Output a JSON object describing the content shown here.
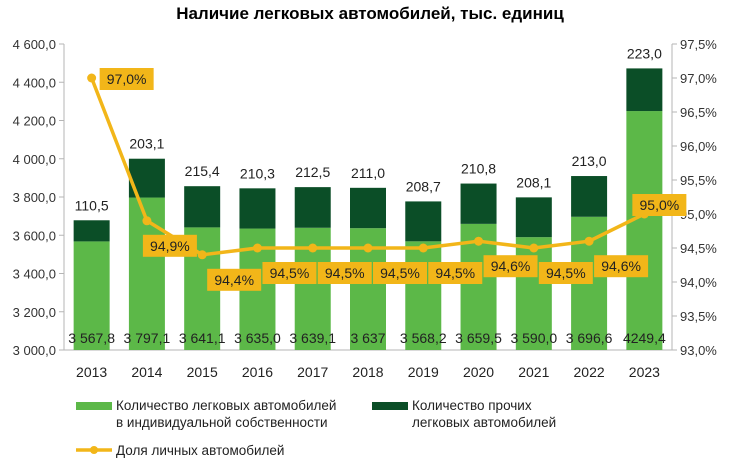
{
  "chart_data": {
    "type": "bar",
    "stacked": true,
    "title": "Наличие легковых автомобилей, тыс. единиц",
    "categories": [
      "2013",
      "2014",
      "2015",
      "2016",
      "2017",
      "2018",
      "2019",
      "2020",
      "2021",
      "2022",
      "2023"
    ],
    "series": [
      {
        "name": "Количество легковых автомобилей в индивидуальной собственности",
        "kind": "bar",
        "color": "#5cb848",
        "values": [
          3567.8,
          3797.1,
          3641.1,
          3635.0,
          3639.1,
          3637.0,
          3568.2,
          3659.5,
          3590.0,
          3696.6,
          4249.4
        ],
        "labels": [
          "3 567,8",
          "3 797,1",
          "3 641,1",
          "3 635,0",
          "3 639,1",
          "3 637",
          "3 568,2",
          "3 659,5",
          "3 590,0",
          "3 696,6",
          "4249,4"
        ]
      },
      {
        "name": "Количество прочих легковых автомобилей",
        "kind": "bar",
        "color": "#0b4e27",
        "values": [
          110.5,
          203.1,
          215.4,
          210.3,
          212.5,
          211.0,
          208.7,
          210.8,
          208.1,
          213.0,
          223.0
        ],
        "labels": [
          "110,5",
          "203,1",
          "215,4",
          "210,3",
          "212,5",
          "211,0",
          "208,7",
          "210,8",
          "208,1",
          "213,0",
          "223,0"
        ]
      },
      {
        "name": "Доля личных автомобилей",
        "kind": "line",
        "axis": "right",
        "color": "#f2b619",
        "values": [
          97.0,
          94.9,
          94.4,
          94.5,
          94.5,
          94.5,
          94.5,
          94.6,
          94.5,
          94.6,
          95.0
        ],
        "labels": [
          "97,0%",
          "94,9%",
          "94,4%",
          "94,5%",
          "94,5%",
          "94,5%",
          "94,5%",
          "94,6%",
          "94,5%",
          "94,6%",
          "95,0%"
        ]
      }
    ],
    "y_left": {
      "ylim": [
        3000,
        4600
      ],
      "ticks": [
        3000,
        3200,
        3400,
        3600,
        3800,
        4000,
        4200,
        4400,
        4600
      ],
      "tick_labels": [
        "3 000,0",
        "3 200,0",
        "3 400,0",
        "3 600,0",
        "3 800,0",
        "4 000,0",
        "4 200,0",
        "4 400,0",
        "4 600,0"
      ]
    },
    "y_right": {
      "ylim": [
        93.0,
        97.5
      ],
      "ticks": [
        93.0,
        93.5,
        94.0,
        94.5,
        95.0,
        95.5,
        96.0,
        96.5,
        97.0,
        97.5
      ],
      "tick_labels": [
        "93,0%",
        "93,5%",
        "94,0%",
        "94,5%",
        "95,0%",
        "95,5%",
        "96,0%",
        "96,5%",
        "97,0%",
        "97,5%"
      ]
    },
    "grid": false,
    "legend_position": "bottom",
    "legend": {
      "line1_a": "Количество легковых автомобилей",
      "line1_b": "в индивидуальной собственности",
      "line2_a": "Количество прочих",
      "line2_b": "легковых автомобилей",
      "line3": "Доля личных автомобилей"
    }
  }
}
